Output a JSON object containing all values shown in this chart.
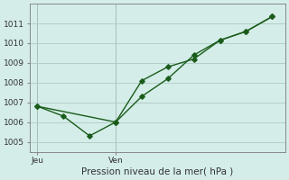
{
  "bg_color": "#d4ede9",
  "grid_color": "#b0c8c4",
  "line_color": "#1a5c1a",
  "line1_x": [
    0,
    1,
    2,
    3,
    4,
    5,
    6,
    7,
    8,
    9
  ],
  "line1_y": [
    1006.8,
    1006.3,
    1005.3,
    1006.0,
    1008.1,
    1008.8,
    1009.2,
    1010.15,
    1010.6,
    1011.35
  ],
  "line2_x": [
    0,
    3,
    4,
    5,
    6,
    7,
    8,
    9
  ],
  "line2_y": [
    1006.8,
    1006.0,
    1007.3,
    1008.2,
    1009.4,
    1010.15,
    1010.6,
    1011.35
  ],
  "xtick_pos": [
    0,
    3
  ],
  "xtick_labels": [
    "Jeu",
    "Ven"
  ],
  "ytick_vals": [
    1005,
    1006,
    1007,
    1008,
    1009,
    1010,
    1011
  ],
  "xlabel": "Pression niveau de la mer( hPa )",
  "ylim": [
    1004.5,
    1012.0
  ],
  "xlim": [
    -0.3,
    9.5
  ],
  "vline_x": [
    0,
    3
  ]
}
